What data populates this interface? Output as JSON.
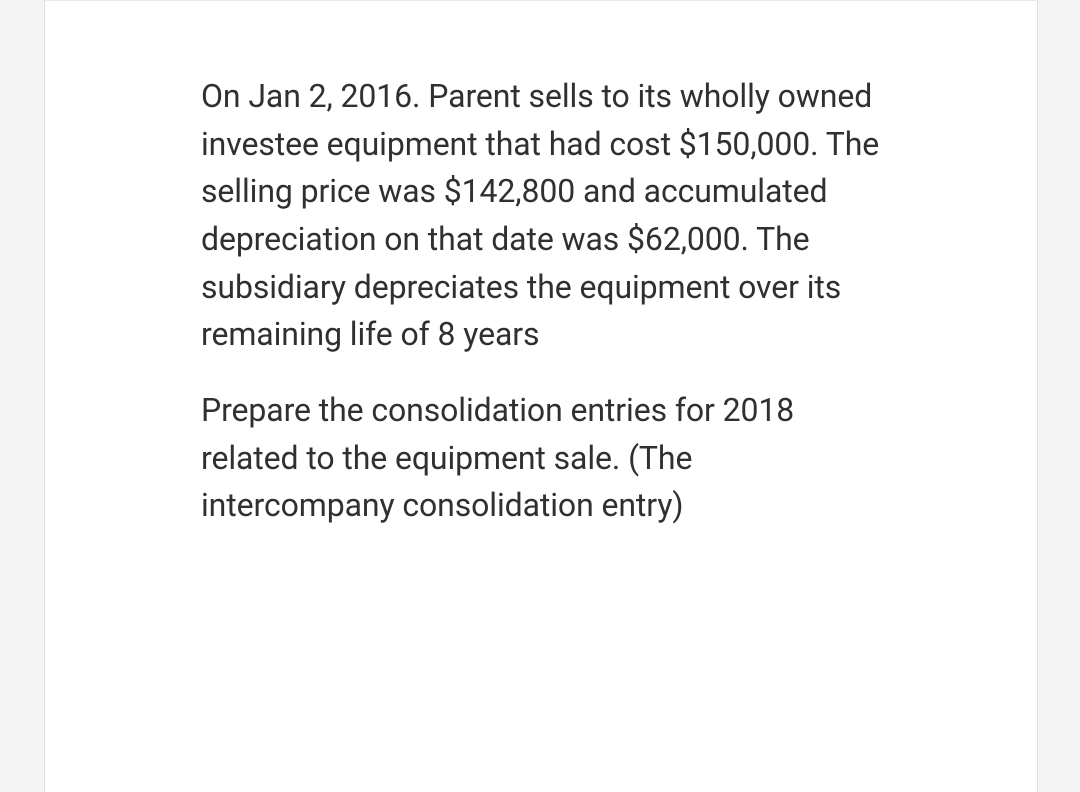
{
  "document": {
    "paragraphs": [
      "On Jan 2, 2016. Parent sells to its wholly owned investee equipment that had cost $150,000. The selling price was $142,800 and accumulated depreciation on that date was $62,000. The subsidiary depreciates the equipment over its remaining life of 8 years",
      "Prepare the consolidation entries for 2018 related to the equipment sale. (The intercompany consolidation entry)"
    ],
    "text_color": "#303030",
    "background_color": "#ffffff",
    "page_background": "#f5f5f5",
    "border_color": "#e0e0e0",
    "font_size": 32,
    "line_height": 1.49
  }
}
